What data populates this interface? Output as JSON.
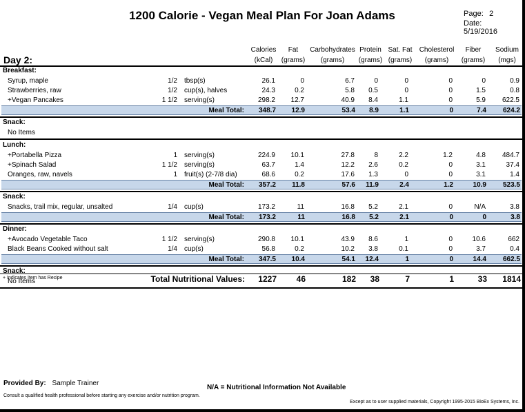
{
  "header": {
    "title": "1200 Calorie - Vegan Meal Plan For Joan Adams",
    "page_label": "Page:",
    "page_value": "2",
    "date_label": "Date:",
    "date_value": "5/19/2016"
  },
  "day_label": "Day 2:",
  "columns": [
    {
      "top": "Calories",
      "bottom": "(kCal)"
    },
    {
      "top": "Fat",
      "bottom": "(grams)"
    },
    {
      "top": "Carbohydrates",
      "bottom": "(grams)"
    },
    {
      "top": "Protein",
      "bottom": "(grams)"
    },
    {
      "top": "Sat. Fat",
      "bottom": "(grams)"
    },
    {
      "top": "Cholesterol",
      "bottom": "(grams)"
    },
    {
      "top": "Fiber",
      "bottom": "(grams)"
    },
    {
      "top": "Sodium",
      "bottom": "(mgs)"
    }
  ],
  "meal_total_label": "Meal Total:",
  "meals": [
    {
      "name": "Breakfast:",
      "items": [
        {
          "name": "Syrup, maple",
          "qty": "1/2",
          "unit": "tbsp(s)",
          "vals": [
            "26.1",
            "0",
            "6.7",
            "0",
            "0",
            "0",
            "0",
            "0.9"
          ]
        },
        {
          "name": "Strawberries, raw",
          "qty": "1/2",
          "unit": "cup(s), halves",
          "vals": [
            "24.3",
            "0.2",
            "5.8",
            "0.5",
            "0",
            "0",
            "1.5",
            "0.8"
          ]
        },
        {
          "name": "+Vegan Pancakes",
          "qty": "1 1/2",
          "unit": "serving(s)",
          "vals": [
            "298.2",
            "12.7",
            "40.9",
            "8.4",
            "1.1",
            "0",
            "5.9",
            "622.5"
          ]
        }
      ],
      "total": [
        "348.7",
        "12.9",
        "53.4",
        "8.9",
        "1.1",
        "0",
        "7.4",
        "624.2"
      ]
    },
    {
      "name": "Snack:",
      "no_items": "No Items"
    },
    {
      "name": "Lunch:",
      "items": [
        {
          "name": "+Portabella Pizza",
          "qty": "1",
          "unit": "serving(s)",
          "vals": [
            "224.9",
            "10.1",
            "27.8",
            "8",
            "2.2",
            "1.2",
            "4.8",
            "484.7"
          ]
        },
        {
          "name": "+Spinach Salad",
          "qty": "1 1/2",
          "unit": "serving(s)",
          "vals": [
            "63.7",
            "1.4",
            "12.2",
            "2.6",
            "0.2",
            "0",
            "3.1",
            "37.4"
          ]
        },
        {
          "name": "Oranges, raw, navels",
          "qty": "1",
          "unit": "fruit(s) (2-7/8 dia)",
          "vals": [
            "68.6",
            "0.2",
            "17.6",
            "1.3",
            "0",
            "0",
            "3.1",
            "1.4"
          ]
        }
      ],
      "total": [
        "357.2",
        "11.8",
        "57.6",
        "11.9",
        "2.4",
        "1.2",
        "10.9",
        "523.5"
      ]
    },
    {
      "name": "Snack:",
      "items": [
        {
          "name": "Snacks, trail mix, regular, unsalted",
          "qty": "1/4",
          "unit": "cup(s)",
          "vals": [
            "173.2",
            "11",
            "16.8",
            "5.2",
            "2.1",
            "0",
            "N/A",
            "3.8"
          ]
        }
      ],
      "total": [
        "173.2",
        "11",
        "16.8",
        "5.2",
        "2.1",
        "0",
        "0",
        "3.8"
      ]
    },
    {
      "name": "Dinner:",
      "items": [
        {
          "name": "+Avocado Vegetable Taco",
          "qty": "1 1/2",
          "unit": "serving(s)",
          "vals": [
            "290.8",
            "10.1",
            "43.9",
            "8.6",
            "1",
            "0",
            "10.6",
            "662"
          ]
        },
        {
          "name": "Black Beans Cooked without salt",
          "qty": "1/4",
          "unit": "cup(s)",
          "vals": [
            "56.8",
            "0.2",
            "10.2",
            "3.8",
            "0.1",
            "0",
            "3.7",
            "0.4"
          ]
        }
      ],
      "total": [
        "347.5",
        "10.4",
        "54.1",
        "12.4",
        "1",
        "0",
        "14.4",
        "662.5"
      ]
    },
    {
      "name": "Snack:",
      "no_items": "No Items"
    }
  ],
  "recipe_note": "+ Indicates Item has Recipe",
  "grand_total_label": "Total Nutritional Values:",
  "grand_total": [
    "1227",
    "46",
    "182",
    "38",
    "7",
    "1",
    "33",
    "1814"
  ],
  "footer": {
    "provided_label": "Provided By:",
    "provided_value": "Sample Trainer",
    "na_note": "N/A = Nutritional Information Not Available",
    "consult": "Consult a qualified health professional before starting any exercise and/or nutrition program.",
    "copyright": "Except as to user supplied materials, Copyright 1995-2015 BioEx Systems, Inc."
  }
}
